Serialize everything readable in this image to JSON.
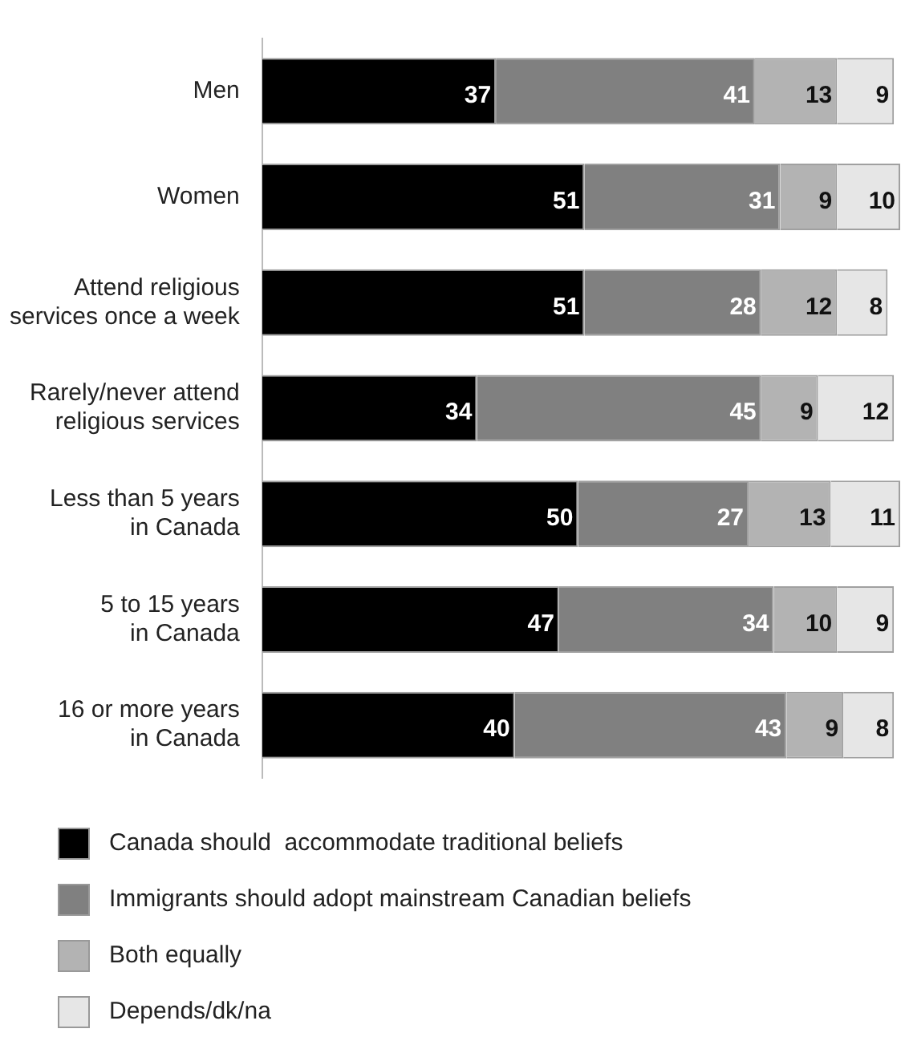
{
  "chart_data": {
    "type": "bar",
    "orientation": "horizontal",
    "stacked": true,
    "data_labels": true,
    "grid": false,
    "legend": "bottom",
    "categories": [
      "Men",
      "Women",
      "Attend religious\nservices once a week",
      "Rarely/never attend\nreligious services",
      "Less than 5 years\nin Canada",
      "5 to 15 years\nin Canada",
      "16 or more years\nin Canada"
    ],
    "series": [
      {
        "name": "Canada should  accommodate traditional beliefs",
        "color": "#000000",
        "values": [
          37,
          51,
          51,
          34,
          50,
          47,
          40
        ]
      },
      {
        "name": "Immigrants should adopt mainstream Canadian beliefs",
        "color": "#808080",
        "values": [
          41,
          31,
          28,
          45,
          27,
          34,
          43
        ]
      },
      {
        "name": "Both equally",
        "color": "#b3b3b3",
        "values": [
          13,
          9,
          12,
          9,
          13,
          10,
          9
        ]
      },
      {
        "name": "Depends/dk/na",
        "color": "#e6e6e6",
        "values": [
          9,
          10,
          8,
          12,
          11,
          9,
          8
        ]
      }
    ]
  }
}
